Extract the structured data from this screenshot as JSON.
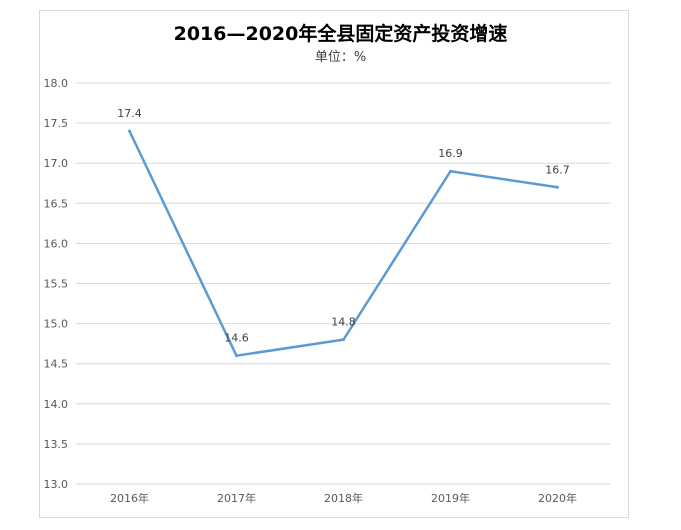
{
  "chart_data": {
    "type": "line",
    "title": "2016—2020年全县固定资产投资增速",
    "subtitle": "单位：%",
    "categories": [
      "2016年",
      "2017年",
      "2018年",
      "2019年",
      "2020年"
    ],
    "series": [
      {
        "values": [
          17.4,
          14.6,
          14.8,
          16.9,
          16.7
        ]
      }
    ],
    "data_labels": [
      "17.4",
      "14.6",
      "14.8",
      "16.9",
      "16.7"
    ],
    "ylim": [
      13.0,
      18.0
    ],
    "yticks": [
      "13.0",
      "13.5",
      "14.0",
      "14.5",
      "15.0",
      "15.5",
      "16.0",
      "16.5",
      "17.0",
      "17.5",
      "18.0"
    ],
    "grid": true,
    "line_color": "#5b9bd5",
    "grid_color": "#d9d9d9"
  }
}
